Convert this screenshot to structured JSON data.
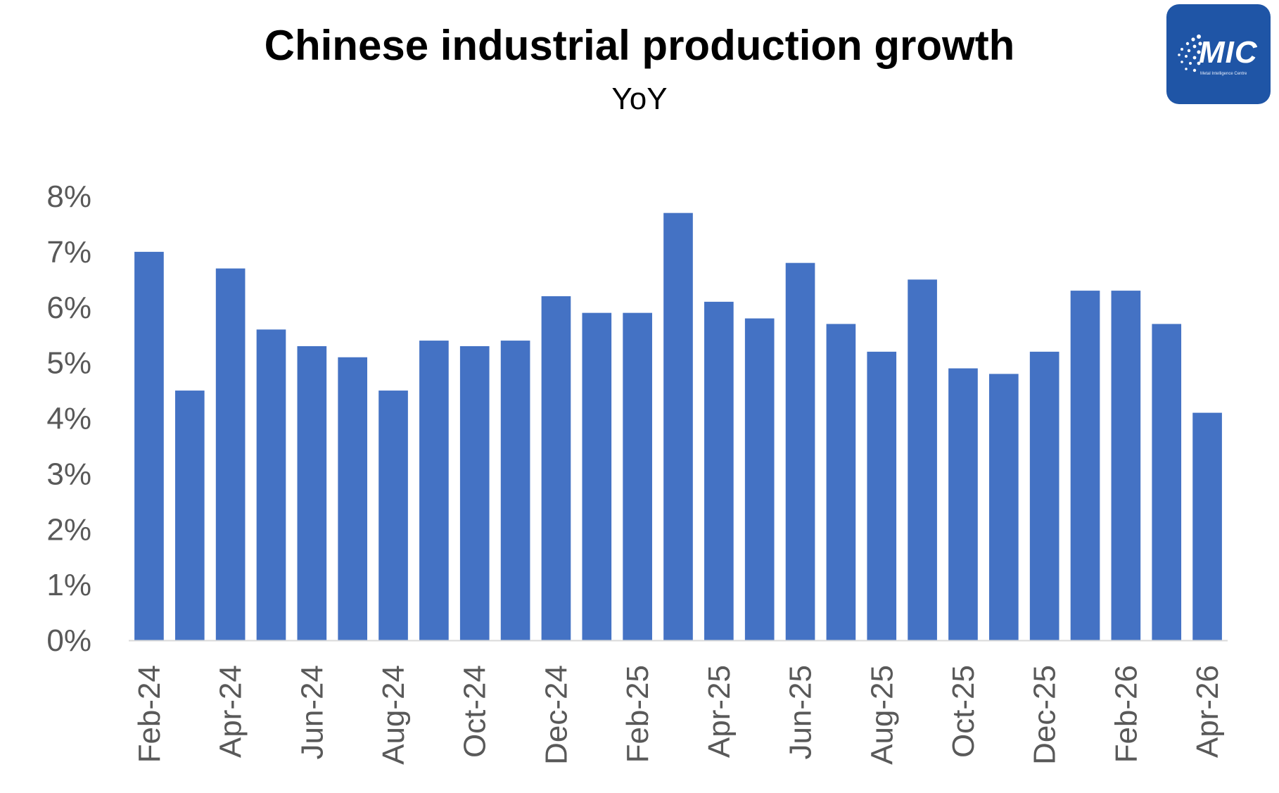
{
  "header": {
    "title": "Chinese industrial production growth",
    "subtitle": "YoY"
  },
  "logo": {
    "text": "MIC",
    "subtext": "Metal Intelligence Centre",
    "color": "#1f55a6"
  },
  "chart_data": {
    "type": "bar",
    "title": "Chinese industrial production growth",
    "subtitle": "YoY",
    "categories": [
      "Feb-24",
      "Mar-24",
      "Apr-24",
      "May-24",
      "Jun-24",
      "Jul-24",
      "Aug-24",
      "Sep-24",
      "Oct-24",
      "Nov-24",
      "Dec-24",
      "Jan-25",
      "Feb-25",
      "Mar-25",
      "Apr-25",
      "May-25",
      "Jun-25",
      "Jul-25",
      "Aug-25",
      "Sep-25",
      "Oct-25",
      "Nov-25",
      "Dec-25",
      "Jan-26",
      "Feb-26",
      "Mar-26",
      "Apr-26"
    ],
    "x_tick_labels": [
      "Feb-24",
      "",
      "Apr-24",
      "",
      "Jun-24",
      "",
      "Aug-24",
      "",
      "Oct-24",
      "",
      "Dec-24",
      "",
      "Feb-25",
      "",
      "Apr-25",
      "",
      "Jun-25",
      "",
      "Aug-25",
      "",
      "Oct-25",
      "",
      "Dec-25",
      "",
      "Feb-26",
      "",
      "Apr-26"
    ],
    "values": [
      7.0,
      4.5,
      6.7,
      5.6,
      5.3,
      5.1,
      4.5,
      5.4,
      5.3,
      5.4,
      6.2,
      5.9,
      5.9,
      7.7,
      6.1,
      5.8,
      6.8,
      5.7,
      5.2,
      6.5,
      4.9,
      4.8,
      5.2,
      6.3,
      6.3,
      5.7,
      4.1
    ],
    "ylim": [
      0,
      8
    ],
    "y_ticks": [
      "0%",
      "1%",
      "2%",
      "3%",
      "4%",
      "5%",
      "6%",
      "7%",
      "8%"
    ],
    "xlabel": "",
    "ylabel": "",
    "grid": false,
    "legend": "none",
    "bar_color": "#4472c4",
    "axis_color": "#d9d9d9",
    "tick_color": "#595959"
  }
}
